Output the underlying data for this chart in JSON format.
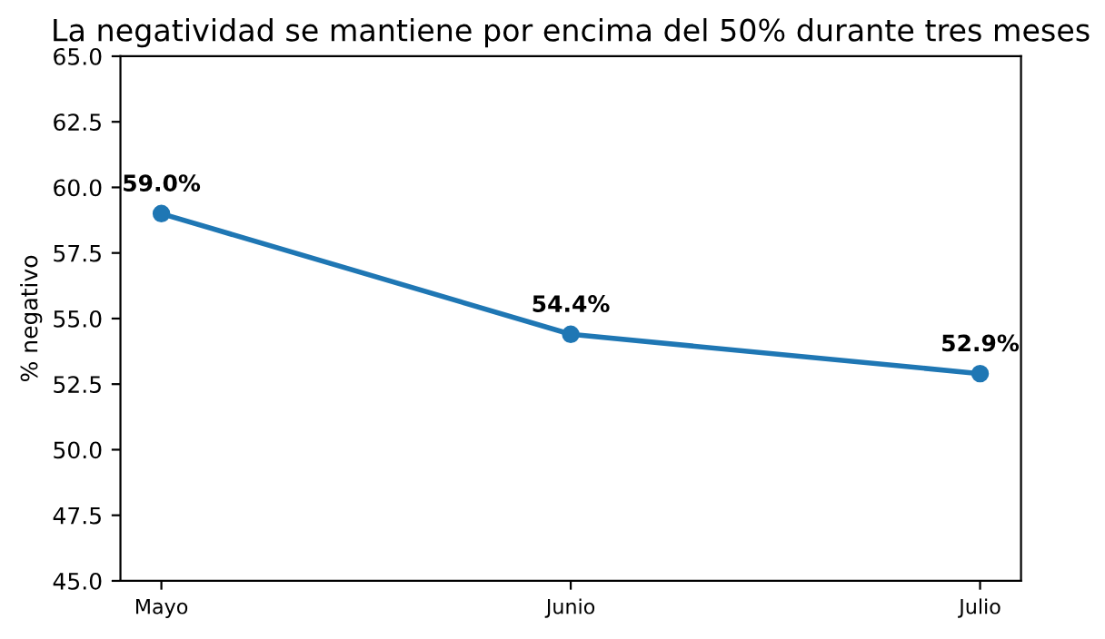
{
  "chart_data": {
    "type": "line",
    "title": "La negatividad se mantiene por encima del 50% durante tres meses",
    "ylabel": "% negativo",
    "categories": [
      "Mayo",
      "Junio",
      "Julio"
    ],
    "series": [
      {
        "color": "#1f77b4",
        "values": [
          59.0,
          54.4,
          52.9
        ],
        "value_labels": [
          "59.0%",
          "54.4%",
          "52.9%"
        ]
      }
    ],
    "ylim": [
      45,
      65
    ],
    "yticks": [
      {
        "value": 45,
        "label": "45.0"
      },
      {
        "value": 47.5,
        "label": "47.5"
      },
      {
        "value": 50,
        "label": "50.0"
      },
      {
        "value": 52.5,
        "label": "52.5"
      },
      {
        "value": 55,
        "label": "55.0"
      },
      {
        "value": 57.5,
        "label": "57.5"
      },
      {
        "value": 60,
        "label": "60.0"
      },
      {
        "value": 62.5,
        "label": "62.5"
      },
      {
        "value": 65,
        "label": "65.0"
      }
    ],
    "marker": "circle",
    "line_style": "solid",
    "grid": false
  }
}
